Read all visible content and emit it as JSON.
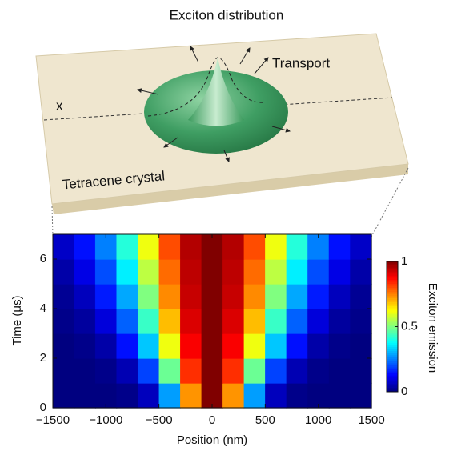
{
  "chart_data": {
    "type": "heatmap",
    "annotations": [
      "Exciton distribution",
      "Transport",
      "x",
      "Tetracene crystal"
    ],
    "xlabel": "Position (nm)",
    "ylabel": "Time (μs)",
    "colorbar_label": "Exciton emission",
    "x_bins": [
      -1500,
      -1300,
      -1100,
      -900,
      -700,
      -500,
      -300,
      -100,
      100,
      300,
      500,
      700,
      900,
      1100,
      1300,
      1500
    ],
    "y_bins": [
      0,
      1,
      2,
      3,
      4,
      5,
      6,
      7
    ],
    "values": [
      [
        0,
        0,
        0,
        0.01,
        0.06,
        0.28,
        0.73,
        1,
        0.73,
        0.28,
        0.06,
        0.01,
        0,
        0,
        0
      ],
      [
        0,
        0,
        0.01,
        0.05,
        0.19,
        0.48,
        0.83,
        1,
        0.83,
        0.48,
        0.19,
        0.05,
        0.01,
        0,
        0
      ],
      [
        0,
        0.01,
        0.04,
        0.14,
        0.32,
        0.61,
        0.88,
        1,
        0.88,
        0.61,
        0.32,
        0.14,
        0.04,
        0.01,
        0
      ],
      [
        0.01,
        0.03,
        0.09,
        0.22,
        0.43,
        0.69,
        0.91,
        1,
        0.91,
        0.69,
        0.43,
        0.22,
        0.09,
        0.03,
        0.01
      ],
      [
        0.02,
        0.06,
        0.15,
        0.29,
        0.5,
        0.74,
        0.93,
        1,
        0.93,
        0.74,
        0.5,
        0.29,
        0.15,
        0.06,
        0.02
      ],
      [
        0.04,
        0.1,
        0.2,
        0.36,
        0.56,
        0.77,
        0.94,
        1,
        0.94,
        0.77,
        0.56,
        0.36,
        0.2,
        0.1,
        0.04
      ],
      [
        0.07,
        0.14,
        0.25,
        0.41,
        0.61,
        0.8,
        0.95,
        1,
        0.95,
        0.8,
        0.61,
        0.41,
        0.25,
        0.14,
        0.07
      ]
    ],
    "xlim": [
      -1500,
      1500
    ],
    "xticks": [
      {
        "value": -1500,
        "label": "−1500"
      },
      {
        "value": -1000,
        "label": "−1000"
      },
      {
        "value": -500,
        "label": "−500"
      },
      0,
      500,
      1000,
      1500
    ],
    "ylim": [
      0,
      7
    ],
    "yticks": [
      0,
      2,
      4,
      6
    ],
    "clim": [
      0,
      1
    ],
    "cticks": [
      0,
      0.5,
      1
    ],
    "colormap": "jet"
  }
}
